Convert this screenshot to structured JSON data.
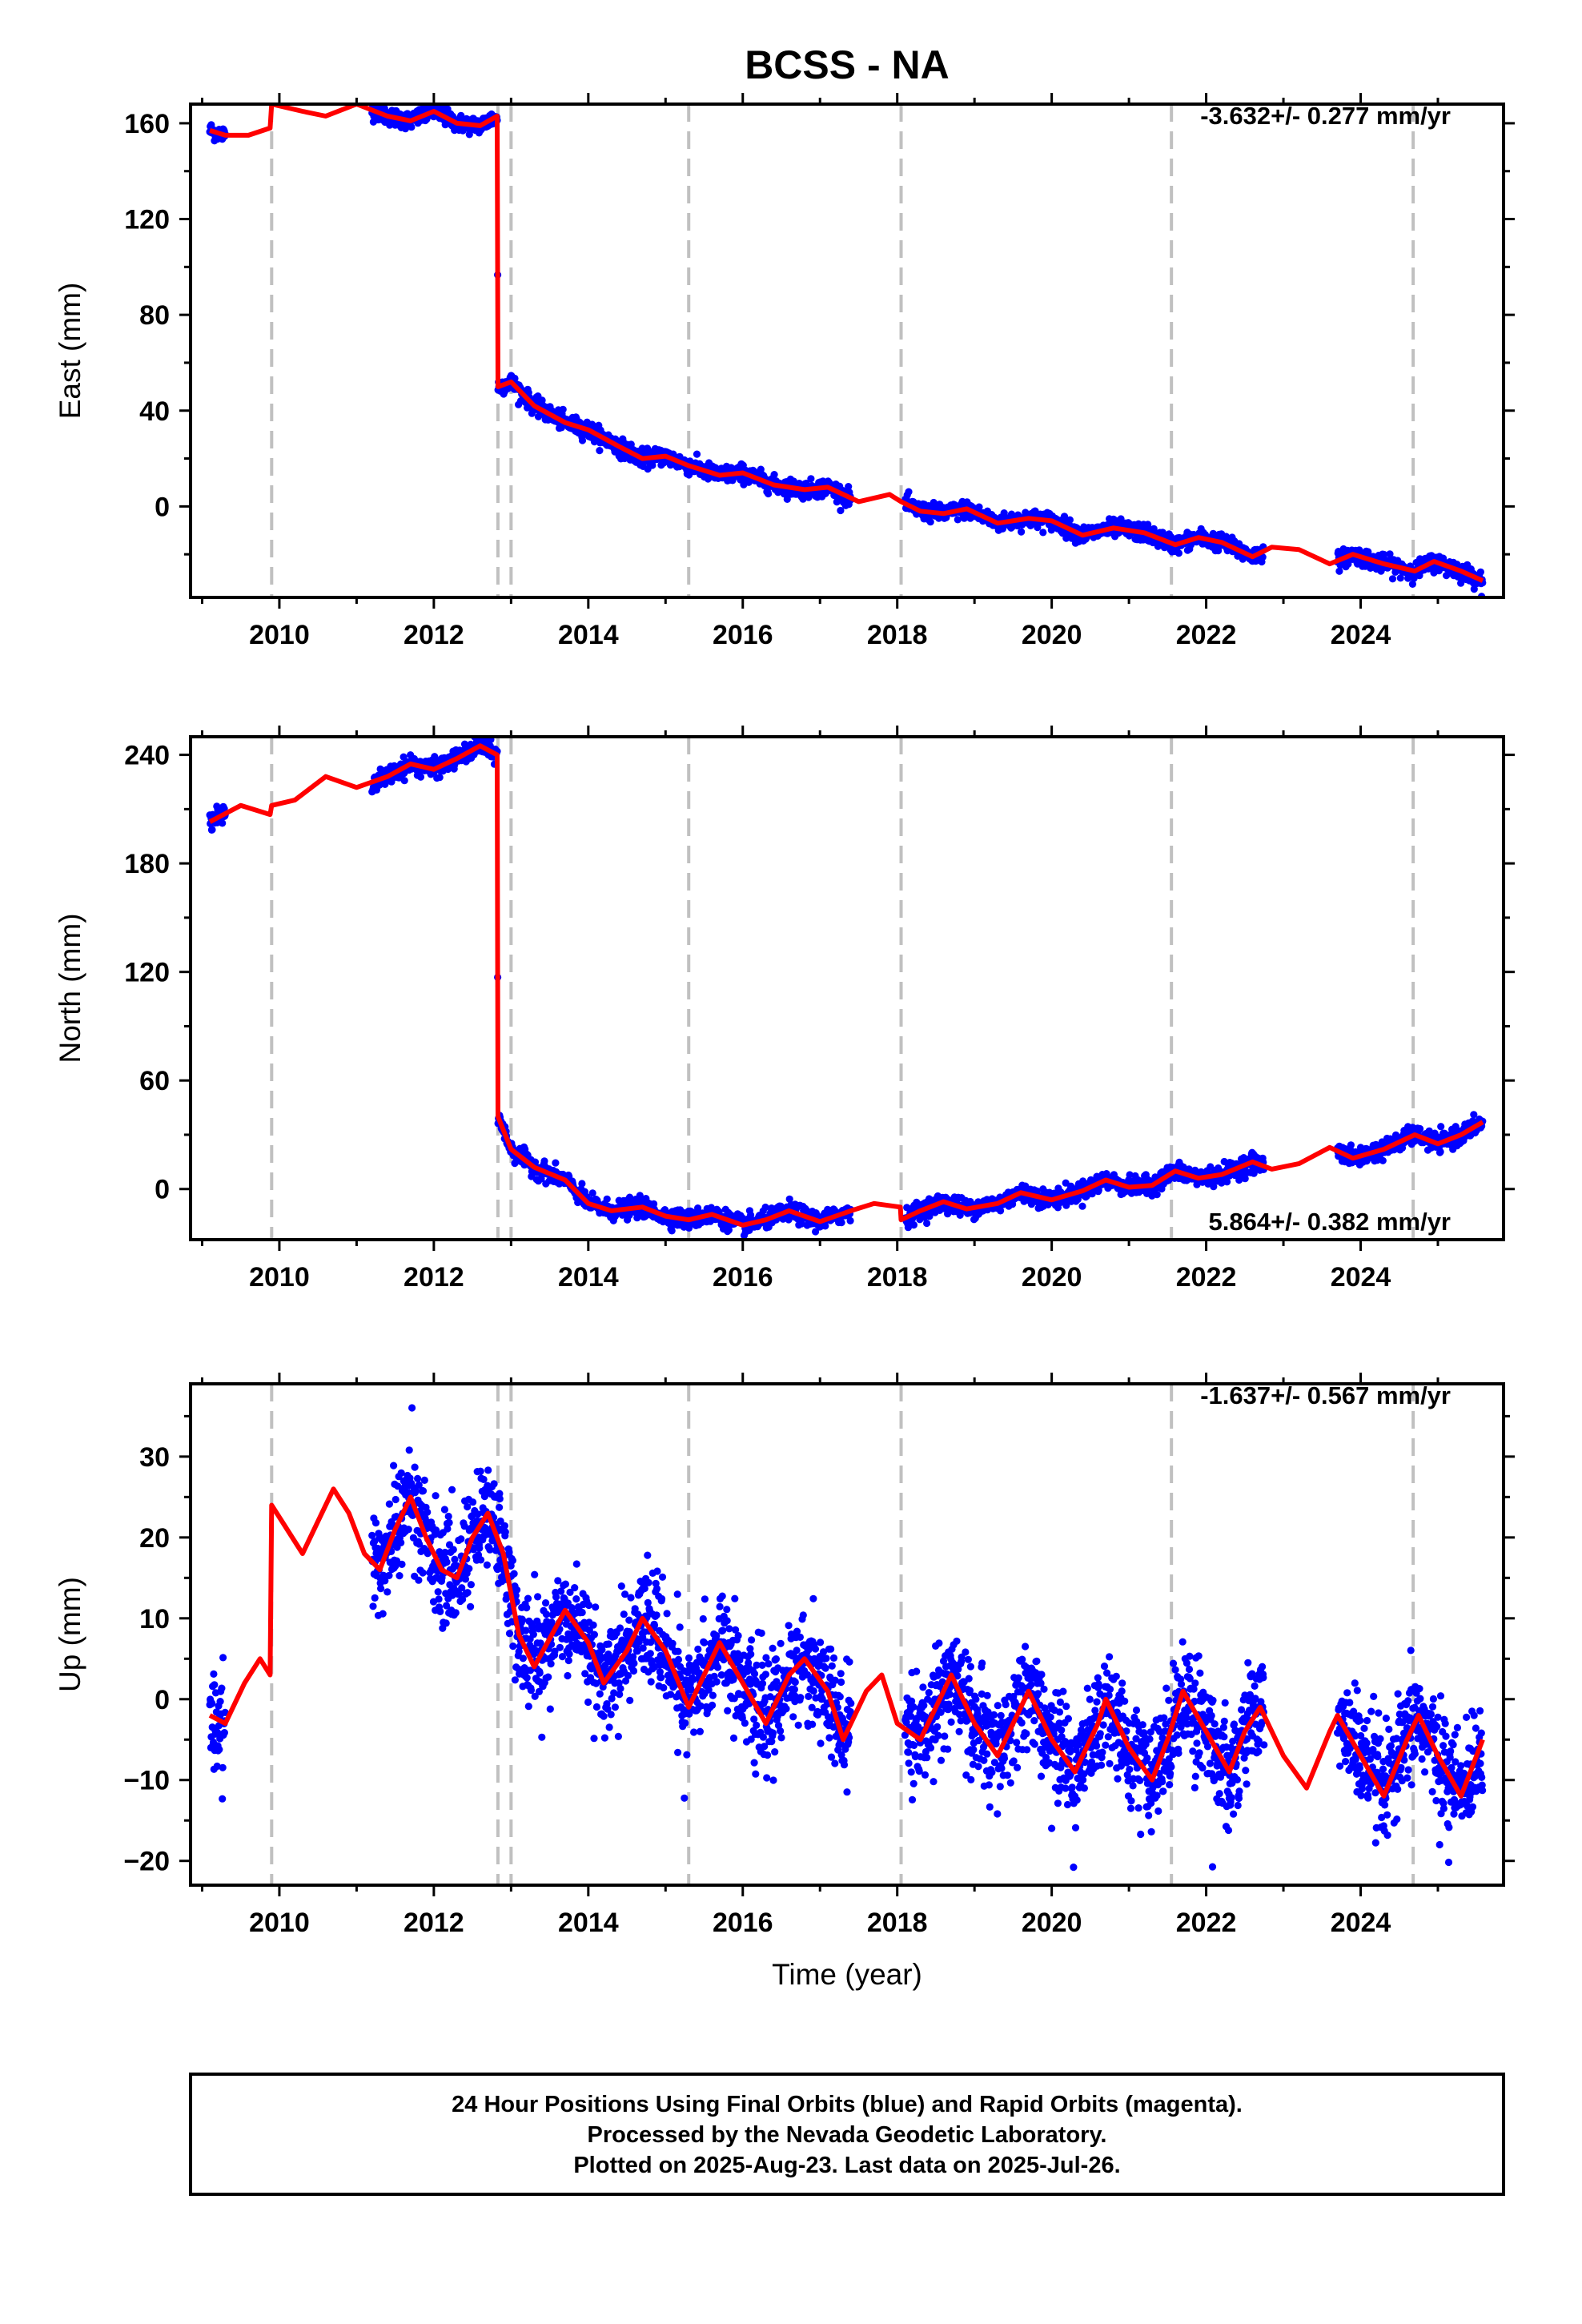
{
  "title": "BCSS - NA",
  "xlabel": "Time (year)",
  "footer": {
    "lines": [
      "24 Hour Positions Using Final Orbits (blue) and Rapid Orbits (magenta).",
      "Processed by the Nevada Geodetic Laboratory.",
      "Plotted on 2025-Aug-23. Last data on 2025-Jul-26."
    ]
  },
  "colors": {
    "data": "#0000ff",
    "model": "#ff0000",
    "breaks": "#c0c0c0",
    "frame": "#000000"
  },
  "chart_data": [
    {
      "type": "scatter",
      "panel": "east",
      "ylabel": "East (mm)",
      "rate_text": "-3.632+/- 0.277 mm/yr",
      "rate_position": "top-right",
      "xlim": [
        2008.85,
        2025.85
      ],
      "ylim": [
        -38,
        168
      ],
      "xticks": [
        2010,
        2012,
        2014,
        2016,
        2018,
        2020,
        2022,
        2024
      ],
      "yticks": [
        0,
        40,
        80,
        120,
        160
      ],
      "break_epochs": [
        2009.9,
        2012.83,
        2013.0,
        2015.3,
        2018.05,
        2021.55,
        2024.68
      ],
      "observation_intervals": [
        [
          2009.1,
          2009.3
        ],
        [
          2011.2,
          2012.85
        ],
        [
          2012.85,
          2017.4
        ],
        [
          2018.1,
          2022.75
        ],
        [
          2023.7,
          2025.58
        ]
      ],
      "observation_noise_mm": 1.8,
      "model": [
        [
          2009.1,
          157
        ],
        [
          2009.3,
          155
        ],
        [
          2009.6,
          155
        ],
        [
          2009.88,
          158
        ],
        [
          2009.9,
          168
        ],
        [
          2010.3,
          165
        ],
        [
          2010.6,
          163
        ],
        [
          2011.0,
          168
        ],
        [
          2011.4,
          163
        ],
        [
          2011.7,
          161
        ],
        [
          2012.0,
          165
        ],
        [
          2012.3,
          160
        ],
        [
          2012.6,
          159
        ],
        [
          2012.82,
          163
        ],
        [
          2012.83,
          50
        ],
        [
          2013.0,
          52
        ],
        [
          2013.3,
          42
        ],
        [
          2013.7,
          35
        ],
        [
          2014.0,
          32
        ],
        [
          2014.4,
          25
        ],
        [
          2014.7,
          20
        ],
        [
          2015.0,
          21
        ],
        [
          2015.3,
          17
        ],
        [
          2015.7,
          13
        ],
        [
          2016.0,
          14
        ],
        [
          2016.4,
          9
        ],
        [
          2016.8,
          7
        ],
        [
          2017.1,
          8
        ],
        [
          2017.5,
          2
        ],
        [
          2017.9,
          5
        ],
        [
          2018.05,
          2
        ],
        [
          2018.3,
          -2
        ],
        [
          2018.6,
          -3
        ],
        [
          2018.9,
          -1
        ],
        [
          2019.3,
          -7
        ],
        [
          2019.7,
          -5
        ],
        [
          2020.0,
          -6
        ],
        [
          2020.4,
          -12
        ],
        [
          2020.8,
          -9
        ],
        [
          2021.2,
          -11
        ],
        [
          2021.6,
          -16
        ],
        [
          2021.9,
          -13
        ],
        [
          2022.2,
          -15
        ],
        [
          2022.6,
          -21
        ],
        [
          2022.85,
          -17
        ],
        [
          2023.2,
          -18
        ],
        [
          2023.6,
          -24
        ],
        [
          2023.9,
          -20
        ],
        [
          2024.3,
          -24
        ],
        [
          2024.7,
          -27
        ],
        [
          2024.95,
          -23
        ],
        [
          2025.3,
          -27
        ],
        [
          2025.58,
          -31
        ]
      ]
    },
    {
      "type": "scatter",
      "panel": "north",
      "ylabel": "North (mm)",
      "rate_text": "5.864+/- 0.382 mm/yr",
      "rate_position": "bottom-right",
      "xlim": [
        2008.85,
        2025.85
      ],
      "ylim": [
        -28,
        250
      ],
      "xticks": [
        2010,
        2012,
        2014,
        2016,
        2018,
        2020,
        2022,
        2024
      ],
      "yticks": [
        0,
        60,
        120,
        180,
        240
      ],
      "break_epochs": [
        2009.9,
        2012.83,
        2013.0,
        2015.3,
        2018.05,
        2021.55,
        2024.68
      ],
      "observation_intervals": [
        [
          2009.1,
          2009.3
        ],
        [
          2011.2,
          2012.85
        ],
        [
          2012.85,
          2017.4
        ],
        [
          2018.1,
          2022.75
        ],
        [
          2023.7,
          2025.58
        ]
      ],
      "observation_noise_mm": 2.5,
      "model": [
        [
          2009.1,
          203
        ],
        [
          2009.5,
          212
        ],
        [
          2009.88,
          207
        ],
        [
          2009.9,
          212
        ],
        [
          2010.2,
          215
        ],
        [
          2010.6,
          228
        ],
        [
          2011.0,
          222
        ],
        [
          2011.4,
          228
        ],
        [
          2011.7,
          235
        ],
        [
          2012.0,
          232
        ],
        [
          2012.3,
          238
        ],
        [
          2012.6,
          245
        ],
        [
          2012.82,
          240
        ],
        [
          2012.83,
          40
        ],
        [
          2013.0,
          22
        ],
        [
          2013.3,
          12
        ],
        [
          2013.7,
          5
        ],
        [
          2014.0,
          -8
        ],
        [
          2014.3,
          -12
        ],
        [
          2014.7,
          -10
        ],
        [
          2015.0,
          -15
        ],
        [
          2015.3,
          -17
        ],
        [
          2015.6,
          -14
        ],
        [
          2016.0,
          -20
        ],
        [
          2016.3,
          -17
        ],
        [
          2016.6,
          -12
        ],
        [
          2017.0,
          -18
        ],
        [
          2017.4,
          -12
        ],
        [
          2017.7,
          -8
        ],
        [
          2018.04,
          -10
        ],
        [
          2018.05,
          -17
        ],
        [
          2018.3,
          -12
        ],
        [
          2018.6,
          -7
        ],
        [
          2018.9,
          -11
        ],
        [
          2019.3,
          -8
        ],
        [
          2019.6,
          -2
        ],
        [
          2020.0,
          -6
        ],
        [
          2020.4,
          -1
        ],
        [
          2020.7,
          5
        ],
        [
          2021.0,
          1
        ],
        [
          2021.3,
          2
        ],
        [
          2021.6,
          10
        ],
        [
          2021.9,
          6
        ],
        [
          2022.2,
          8
        ],
        [
          2022.6,
          15
        ],
        [
          2022.85,
          11
        ],
        [
          2023.2,
          14
        ],
        [
          2023.6,
          23
        ],
        [
          2023.9,
          17
        ],
        [
          2024.3,
          22
        ],
        [
          2024.7,
          30
        ],
        [
          2025.0,
          25
        ],
        [
          2025.3,
          30
        ],
        [
          2025.58,
          37
        ]
      ]
    },
    {
      "type": "scatter",
      "panel": "up",
      "ylabel": "Up (mm)",
      "rate_text": "-1.637+/- 0.567 mm/yr",
      "rate_position": "top-right",
      "xlim": [
        2008.85,
        2025.85
      ],
      "ylim": [
        -23,
        39
      ],
      "xticks": [
        2010,
        2012,
        2014,
        2016,
        2018,
        2020,
        2022,
        2024
      ],
      "yticks": [
        -20,
        -10,
        0,
        10,
        20,
        30
      ],
      "break_epochs": [
        2009.9,
        2012.83,
        2013.0,
        2015.3,
        2018.05,
        2021.55,
        2024.68
      ],
      "observation_intervals": [
        [
          2009.1,
          2009.3
        ],
        [
          2011.2,
          2012.85
        ],
        [
          2012.85,
          2017.4
        ],
        [
          2018.1,
          2022.75
        ],
        [
          2023.7,
          2025.58
        ]
      ],
      "observation_noise_mm": 3.2,
      "model": [
        [
          2009.1,
          -2
        ],
        [
          2009.3,
          -3
        ],
        [
          2009.55,
          2
        ],
        [
          2009.75,
          5
        ],
        [
          2009.88,
          3
        ],
        [
          2009.9,
          24
        ],
        [
          2010.1,
          21
        ],
        [
          2010.3,
          18
        ],
        [
          2010.5,
          22
        ],
        [
          2010.7,
          26
        ],
        [
          2010.9,
          23
        ],
        [
          2011.1,
          18
        ],
        [
          2011.3,
          16
        ],
        [
          2011.5,
          21
        ],
        [
          2011.7,
          25
        ],
        [
          2011.9,
          20
        ],
        [
          2012.1,
          16
        ],
        [
          2012.3,
          15
        ],
        [
          2012.5,
          20
        ],
        [
          2012.7,
          23
        ],
        [
          2012.9,
          18
        ],
        [
          2013.1,
          8
        ],
        [
          2013.3,
          4
        ],
        [
          2013.7,
          11
        ],
        [
          2014.0,
          7
        ],
        [
          2014.2,
          2
        ],
        [
          2014.5,
          6
        ],
        [
          2014.7,
          10
        ],
        [
          2015.0,
          6
        ],
        [
          2015.3,
          -1
        ],
        [
          2015.5,
          3
        ],
        [
          2015.7,
          7
        ],
        [
          2016.0,
          2
        ],
        [
          2016.3,
          -3
        ],
        [
          2016.6,
          3
        ],
        [
          2016.8,
          5
        ],
        [
          2017.1,
          1
        ],
        [
          2017.3,
          -5
        ],
        [
          2017.6,
          1
        ],
        [
          2017.8,
          3
        ],
        [
          2018.0,
          -3
        ],
        [
          2018.3,
          -5
        ],
        [
          2018.6,
          1
        ],
        [
          2018.7,
          3
        ],
        [
          2019.0,
          -3
        ],
        [
          2019.3,
          -7
        ],
        [
          2019.6,
          -1
        ],
        [
          2019.7,
          1
        ],
        [
          2020.0,
          -5
        ],
        [
          2020.3,
          -9
        ],
        [
          2020.6,
          -3
        ],
        [
          2020.7,
          0
        ],
        [
          2021.0,
          -6
        ],
        [
          2021.3,
          -10
        ],
        [
          2021.5,
          -5
        ],
        [
          2021.7,
          1
        ],
        [
          2022.0,
          -4
        ],
        [
          2022.3,
          -9
        ],
        [
          2022.5,
          -4
        ],
        [
          2022.7,
          -1
        ],
        [
          2023.0,
          -7
        ],
        [
          2023.3,
          -11
        ],
        [
          2023.6,
          -4
        ],
        [
          2023.7,
          -2
        ],
        [
          2024.0,
          -7
        ],
        [
          2024.3,
          -12
        ],
        [
          2024.6,
          -5
        ],
        [
          2024.75,
          -2
        ],
        [
          2025.0,
          -7
        ],
        [
          2025.3,
          -12
        ],
        [
          2025.58,
          -5
        ]
      ]
    }
  ]
}
